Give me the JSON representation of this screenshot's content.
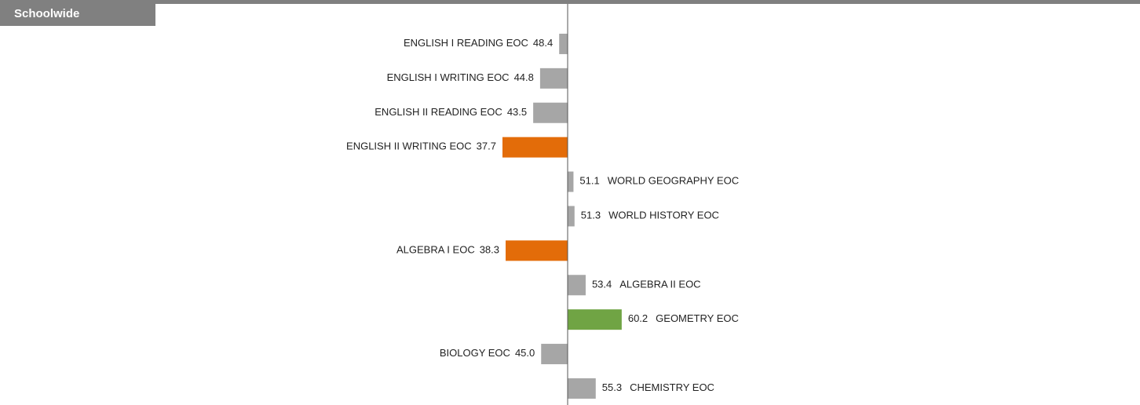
{
  "chart_data": {
    "type": "diverging-bar",
    "title": "Schoolwide",
    "baseline": 50,
    "categories": [
      "ENGLISH I READING EOC",
      "ENGLISH I WRITING EOC",
      "ENGLISH II READING EOC",
      "ENGLISH II WRITING EOC",
      "WORLD GEOGRAPHY EOC",
      "WORLD HISTORY EOC",
      "ALGEBRA I EOC",
      "ALGEBRA II EOC",
      "GEOMETRY EOC",
      "BIOLOGY EOC",
      "CHEMISTRY EOC"
    ],
    "values": [
      48.4,
      44.8,
      43.5,
      37.7,
      51.1,
      51.3,
      38.3,
      53.4,
      60.2,
      45.0,
      55.3
    ],
    "value_labels": [
      "48.4",
      "44.8",
      "43.5",
      "37.7",
      "51.1",
      "51.3",
      "38.3",
      "53.4",
      "60.2",
      "45.0",
      "55.3"
    ],
    "colors": [
      "#a6a6a6",
      "#a6a6a6",
      "#a6a6a6",
      "#e36c09",
      "#a6a6a6",
      "#a6a6a6",
      "#e36c09",
      "#a6a6a6",
      "#70a444",
      "#a6a6a6",
      "#a6a6a6"
    ]
  }
}
